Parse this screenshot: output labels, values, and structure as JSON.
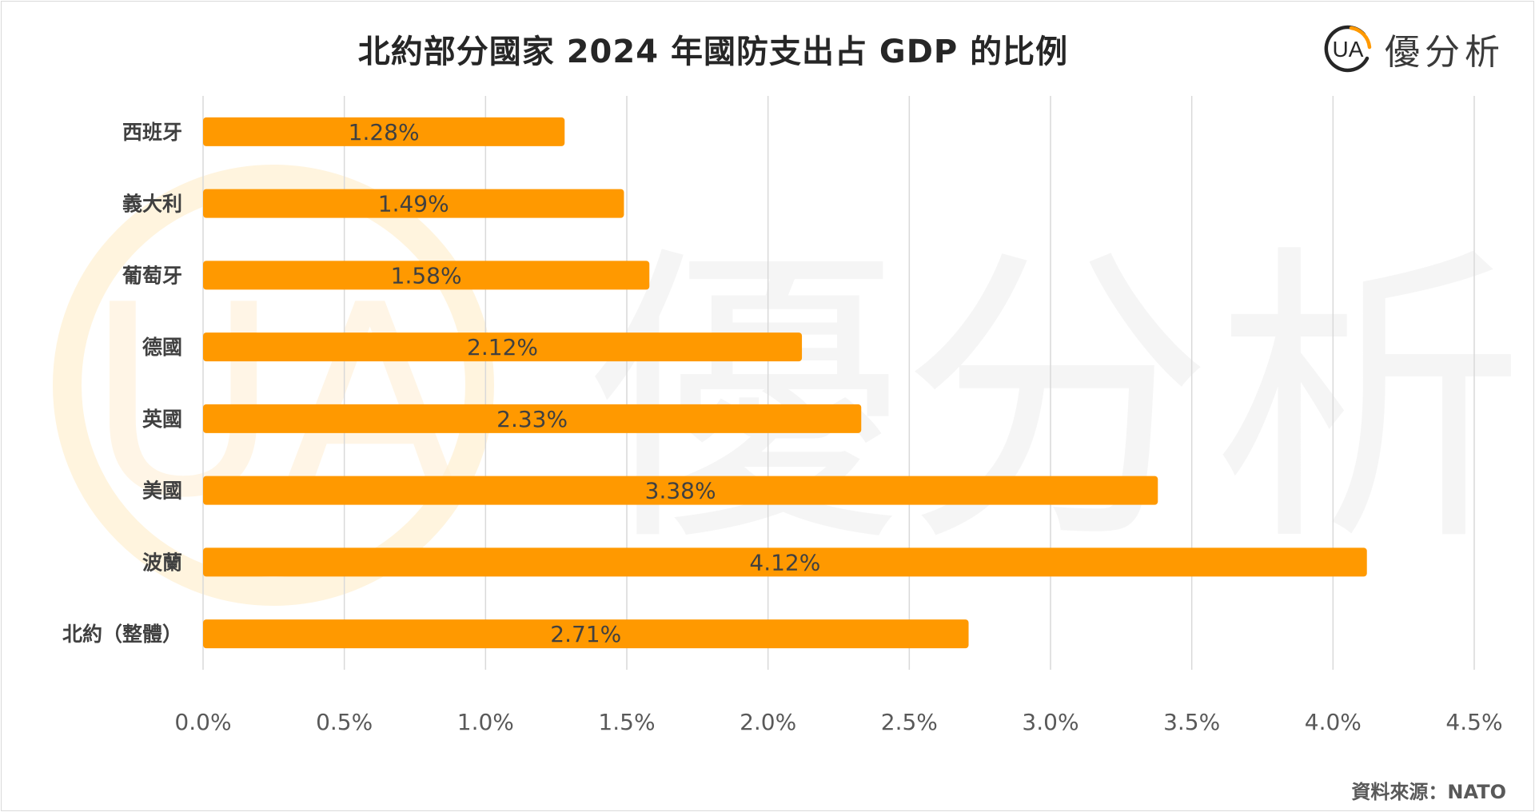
{
  "colors": {
    "bar": "#FF9900",
    "grid": "#d9d9d9",
    "label": "#404040",
    "tick": "#595959"
  },
  "watermark": {
    "text": "優分析",
    "logo_letters": "UA"
  },
  "brand": {
    "logo_letters": "UA",
    "name": "優分析"
  },
  "source": "資料來源：NATO",
  "chart_data": {
    "type": "bar",
    "orientation": "horizontal",
    "title": "北約部分國家 2024 年國防支出占 GDP 的比例",
    "categories": [
      "西班牙",
      "義大利",
      "葡萄牙",
      "德國",
      "英國",
      "美國",
      "波蘭",
      "北約（整體）"
    ],
    "values": [
      1.28,
      1.49,
      1.58,
      2.12,
      2.33,
      3.38,
      4.12,
      2.71
    ],
    "data_labels": [
      "1.28%",
      "1.49%",
      "1.58%",
      "2.12%",
      "2.33%",
      "3.38%",
      "4.12%",
      "2.71%"
    ],
    "x_ticks": [
      "0.0%",
      "0.5%",
      "1.0%",
      "1.5%",
      "2.0%",
      "2.5%",
      "3.0%",
      "3.5%",
      "4.0%",
      "4.5%"
    ],
    "xlim": [
      0,
      4.5
    ],
    "grid": true,
    "legend": false
  }
}
